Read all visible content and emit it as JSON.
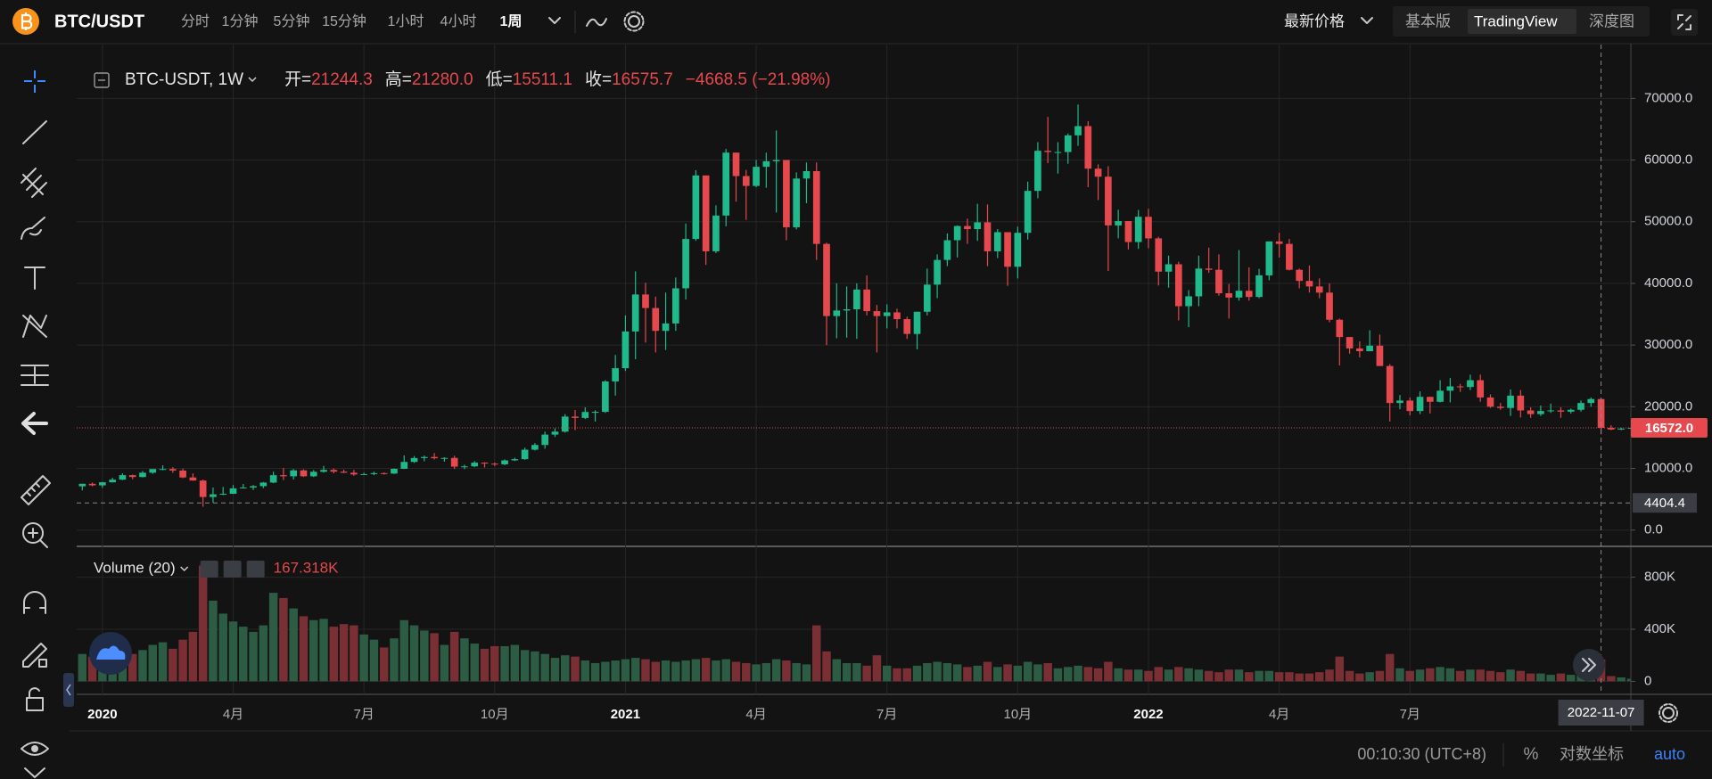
{
  "topbar": {
    "pair": "BTC/USDT",
    "intervals": [
      "分时",
      "1分钟",
      "5分钟",
      "15分钟",
      "1小时",
      "4小时",
      "1周"
    ],
    "price_type": "最新价格",
    "views": [
      "基本版",
      "TradingView",
      "深度图"
    ]
  },
  "chart_data": {
    "type": "candlestick",
    "ohlc_legend": {
      "symbol": "BTC-USDT, 1W",
      "items": [
        {
          "key": "开=",
          "value": "21244.3"
        },
        {
          "key": "高=",
          "value": "21280.0"
        },
        {
          "key": "低=",
          "value": "15511.1"
        },
        {
          "key": "收=",
          "value": "16575.7"
        }
      ],
      "change": "−4668.5 (−21.98%)"
    },
    "volume_legend": {
      "name": "Volume (20)",
      "value": {
        "value": 167318,
        "label": "167.318K"
      }
    },
    "categories": [
      null,
      null,
      "2020",
      null,
      null,
      null,
      null,
      null,
      null,
      null,
      null,
      null,
      null,
      null,
      null,
      "4月",
      null,
      null,
      null,
      null,
      null,
      null,
      null,
      null,
      null,
      null,
      null,
      null,
      "7月",
      null,
      null,
      null,
      null,
      null,
      null,
      null,
      null,
      null,
      null,
      null,
      null,
      "10月",
      null,
      null,
      null,
      null,
      null,
      null,
      null,
      null,
      null,
      null,
      null,
      null,
      "2021",
      null,
      null,
      null,
      null,
      null,
      null,
      null,
      null,
      null,
      null,
      null,
      null,
      "4月",
      null,
      null,
      null,
      null,
      null,
      null,
      null,
      null,
      null,
      null,
      null,
      null,
      "7月",
      null,
      null,
      null,
      null,
      null,
      null,
      null,
      null,
      null,
      null,
      null,
      null,
      "10月",
      null,
      null,
      null,
      null,
      null,
      null,
      null,
      null,
      null,
      null,
      null,
      null,
      "2022",
      null,
      null,
      null,
      null,
      null,
      null,
      null,
      null,
      null,
      null,
      null,
      null,
      "4月",
      null,
      null,
      null,
      null,
      null,
      null,
      null,
      null,
      null,
      null,
      null,
      null,
      "7月",
      null,
      null,
      null,
      null,
      null,
      null,
      null,
      null,
      null,
      null,
      null,
      null,
      null,
      null,
      null,
      null,
      null,
      null,
      null,
      null,
      null,
      null
    ],
    "open": [
      7100,
      7500,
      7250,
      7750,
      8170,
      8900,
      8600,
      9300,
      9900,
      9900,
      9650,
      8530,
      8030,
      5360,
      5800,
      5880,
      6770,
      6900,
      7120,
      7700,
      8900,
      8720,
      9680,
      8720,
      9450,
      9750,
      9470,
      9300,
      9010,
      9070,
      9230,
      9160,
      9930,
      11050,
      11680,
      11850,
      11650,
      11700,
      10280,
      10330,
      10930,
      10770,
      10660,
      11300,
      11500,
      13030,
      13800,
      15480,
      15960,
      18400,
      18180,
      19150,
      19170,
      24100,
      26250,
      32200,
      38200,
      36000,
      32300,
      33500,
      39200,
      47200,
      57500,
      45200,
      51000,
      61200,
      57400,
      55800,
      58900,
      59800,
      60000,
      49100,
      57000,
      58200,
      46400,
      34700,
      35600,
      35800,
      39000,
      35500,
      34700,
      35300,
      34200,
      31800,
      35400,
      39800,
      43800,
      47000,
      49300,
      48800,
      49900,
      45200,
      48300,
      42700,
      48200,
      55000,
      61500,
      61300,
      61300,
      64000,
      65500,
      58600,
      57300,
      49400,
      50100,
      46700,
      50800,
      47300,
      41900,
      43100,
      36300,
      37900,
      42400,
      42200,
      38400,
      37700,
      38800,
      37800,
      41300,
      46800,
      46400,
      42200,
      40400,
      39500,
      38500,
      34100,
      31300,
      29450,
      29000,
      29900,
      26600,
      20600,
      21000,
      19300,
      21600,
      20800,
      22600,
      23300,
      23200,
      24300,
      21500,
      20000,
      19800,
      21800,
      19400,
      18800,
      19300,
      19400,
      19200,
      19500,
      20600,
      21244.3,
      16575.7,
      16300,
      16450
    ],
    "high": [
      7520,
      7700,
      7800,
      8470,
      9190,
      8990,
      9570,
      9870,
      10500,
      10200,
      9970,
      9200,
      8180,
      6900,
      7000,
      7300,
      7470,
      7300,
      7800,
      9460,
      10070,
      9900,
      9850,
      9740,
      10400,
      9990,
      9800,
      9760,
      9300,
      9470,
      9350,
      9990,
      12100,
      12000,
      12080,
      12480,
      11800,
      12050,
      10600,
      11170,
      11000,
      10960,
      11450,
      11720,
      13350,
      14100,
      15960,
      16480,
      18800,
      19480,
      19900,
      19420,
      24300,
      28400,
      34800,
      41950,
      40100,
      37850,
      38500,
      40950,
      49700,
      58350,
      57500,
      52650,
      61800,
      61200,
      58400,
      60000,
      61200,
      64800,
      60000,
      58000,
      59600,
      59600,
      46600,
      40000,
      39500,
      40000,
      41300,
      36500,
      36600,
      35900,
      34600,
      35400,
      42400,
      44700,
      48100,
      49400,
      50500,
      52900,
      52800,
      48800,
      48300,
      49200,
      56500,
      62900,
      67000,
      62900,
      64300,
      69000,
      66300,
      59300,
      59000,
      51950,
      50100,
      51900,
      52100,
      47550,
      44500,
      43500,
      38900,
      44500,
      45800,
      44700,
      39900,
      45400,
      42600,
      42350,
      46800,
      48200,
      47200,
      42400,
      42900,
      40800,
      40000,
      34300,
      31300,
      30600,
      32400,
      31700,
      26900,
      21900,
      21500,
      22500,
      21600,
      24300,
      24650,
      23700,
      25200,
      25200,
      22000,
      20600,
      22800,
      22700,
      19900,
      20200,
      20500,
      19900,
      19700,
      21000,
      21500,
      21280,
      17000,
      16600,
      16650
    ],
    "low": [
      6430,
      7100,
      6850,
      7700,
      8100,
      8250,
      8530,
      9120,
      9700,
      9280,
      8410,
      8000,
      3780,
      4440,
      5680,
      5860,
      6740,
      6500,
      6800,
      7600,
      8100,
      8200,
      8600,
      8600,
      9310,
      9200,
      9250,
      8800,
      8940,
      8900,
      9000,
      9100,
      9900,
      10900,
      11150,
      11450,
      11100,
      9900,
      9880,
      10200,
      10140,
      10380,
      10530,
      11200,
      11400,
      12900,
      13200,
      15100,
      15800,
      16200,
      18000,
      17600,
      19000,
      21800,
      25800,
      27700,
      30400,
      28800,
      29200,
      32300,
      37400,
      46900,
      43000,
      44900,
      49250,
      53250,
      50300,
      55600,
      55500,
      51500,
      47000,
      48750,
      53000,
      43800,
      30000,
      31100,
      31200,
      31000,
      34800,
      28800,
      32700,
      32700,
      31000,
      29300,
      34800,
      37600,
      42800,
      44200,
      46400,
      46900,
      42800,
      44100,
      39600,
      40800,
      47100,
      53800,
      59500,
      57800,
      59400,
      62300,
      55600,
      53500,
      42000,
      47300,
      45500,
      45600,
      45700,
      39650,
      39300,
      34000,
      32900,
      36300,
      41700,
      38000,
      34300,
      37200,
      37200,
      37600,
      40500,
      44200,
      42100,
      39200,
      38500,
      37600,
      33700,
      26700,
      28600,
      28000,
      29000,
      26600,
      17600,
      19600,
      18600,
      18800,
      18900,
      20700,
      20700,
      22400,
      22700,
      20800,
      19800,
      19500,
      18500,
      18250,
      18200,
      18500,
      19000,
      18200,
      18900,
      19200,
      20000,
      15511.1,
      16200,
      16200,
      16400
    ],
    "close": [
      7500,
      7250,
      7750,
      8170,
      8900,
      8600,
      9300,
      9900,
      9900,
      9650,
      8530,
      8030,
      5360,
      5800,
      5880,
      6770,
      6900,
      7120,
      7700,
      8900,
      8720,
      9680,
      8720,
      9450,
      9750,
      9470,
      9300,
      9010,
      9070,
      9230,
      9160,
      9930,
      11050,
      11680,
      11850,
      11650,
      11700,
      10280,
      10330,
      10930,
      10770,
      10660,
      11300,
      11500,
      13030,
      13800,
      15480,
      15960,
      18400,
      18180,
      19150,
      19170,
      24100,
      26250,
      32200,
      38200,
      36000,
      32300,
      33500,
      39200,
      47200,
      57500,
      45200,
      51000,
      61200,
      57400,
      55800,
      58900,
      59800,
      60000,
      49100,
      57000,
      58200,
      46400,
      34700,
      35600,
      35800,
      39000,
      35500,
      34700,
      35300,
      34200,
      31800,
      35400,
      39800,
      43800,
      47000,
      49300,
      48800,
      49900,
      45200,
      48300,
      42700,
      48200,
      55000,
      61500,
      61300,
      61300,
      64000,
      65500,
      58600,
      57300,
      49400,
      50100,
      46700,
      50800,
      47300,
      41900,
      43100,
      36300,
      37900,
      42400,
      42200,
      38400,
      37700,
      38800,
      37800,
      41300,
      46800,
      46400,
      42200,
      40400,
      39500,
      38500,
      34100,
      31300,
      29450,
      29000,
      29900,
      26600,
      20600,
      21000,
      19300,
      21600,
      20800,
      22600,
      23300,
      23200,
      24300,
      21500,
      20000,
      19800,
      21800,
      19400,
      18800,
      19300,
      19400,
      19200,
      19500,
      20600,
      21244.3,
      16575.7,
      16300,
      16450,
      16572
    ],
    "volume": [
      210000,
      190000,
      180000,
      230000,
      260000,
      210000,
      240000,
      280000,
      300000,
      250000,
      320000,
      380000,
      890000,
      620000,
      520000,
      460000,
      420000,
      380000,
      430000,
      680000,
      640000,
      560000,
      500000,
      470000,
      480000,
      420000,
      440000,
      430000,
      360000,
      320000,
      260000,
      330000,
      470000,
      430000,
      390000,
      370000,
      280000,
      380000,
      330000,
      290000,
      250000,
      270000,
      270000,
      280000,
      240000,
      230000,
      210000,
      180000,
      200000,
      190000,
      160000,
      140000,
      150000,
      160000,
      170000,
      180000,
      170000,
      150000,
      160000,
      150000,
      160000,
      170000,
      180000,
      160000,
      170000,
      150000,
      140000,
      130000,
      140000,
      170000,
      160000,
      140000,
      130000,
      430000,
      230000,
      170000,
      140000,
      140000,
      120000,
      200000,
      120000,
      100000,
      100000,
      120000,
      140000,
      150000,
      140000,
      130000,
      110000,
      120000,
      150000,
      110000,
      130000,
      120000,
      150000,
      130000,
      140000,
      100000,
      110000,
      120000,
      110000,
      100000,
      150000,
      100000,
      90000,
      90000,
      80000,
      110000,
      90000,
      110000,
      100000,
      90000,
      80000,
      70000,
      90000,
      90000,
      70000,
      80000,
      80000,
      70000,
      70000,
      60000,
      60000,
      70000,
      90000,
      190000,
      80000,
      60000,
      70000,
      80000,
      210000,
      100000,
      80000,
      90000,
      100000,
      110000,
      100000,
      80000,
      90000,
      90000,
      80000,
      70000,
      90000,
      80000,
      60000,
      60000,
      50000,
      60000,
      50000,
      60000,
      70000,
      167318,
      40000,
      30000,
      20000
    ],
    "up_color": "#1fb98b",
    "down_color": "#e5484d",
    "volume_up_color": "#2d5c45",
    "volume_down_color": "#7a2f34",
    "ylim": [
      -2500,
      78000
    ],
    "yticks": [
      {
        "value": 0,
        "label": "0.0"
      },
      {
        "value": 10000,
        "label": "10000.0"
      },
      {
        "value": 20000,
        "label": "20000.0"
      },
      {
        "value": 30000,
        "label": "30000.0"
      },
      {
        "value": 40000,
        "label": "40000.0"
      },
      {
        "value": 50000,
        "label": "50000.0"
      },
      {
        "value": 60000,
        "label": "60000.0"
      },
      {
        "value": 70000,
        "label": "70000.0"
      }
    ],
    "volume_lim": [
      -100000,
      1030000
    ],
    "volume_ticks": [
      0,
      {
        "value": 400000,
        "label": "400K"
      },
      {
        "value": 800000,
        "label": "800K"
      }
    ],
    "last_price": {
      "value": 16572,
      "label": "16572.0"
    },
    "crosshair_price": 4404.4,
    "crosshair_date": "2022-11-07",
    "grid": true
  },
  "status": {
    "time": "00:10:30 (UTC+8)",
    "percent": "%",
    "log": "对数坐标",
    "auto": "auto"
  }
}
